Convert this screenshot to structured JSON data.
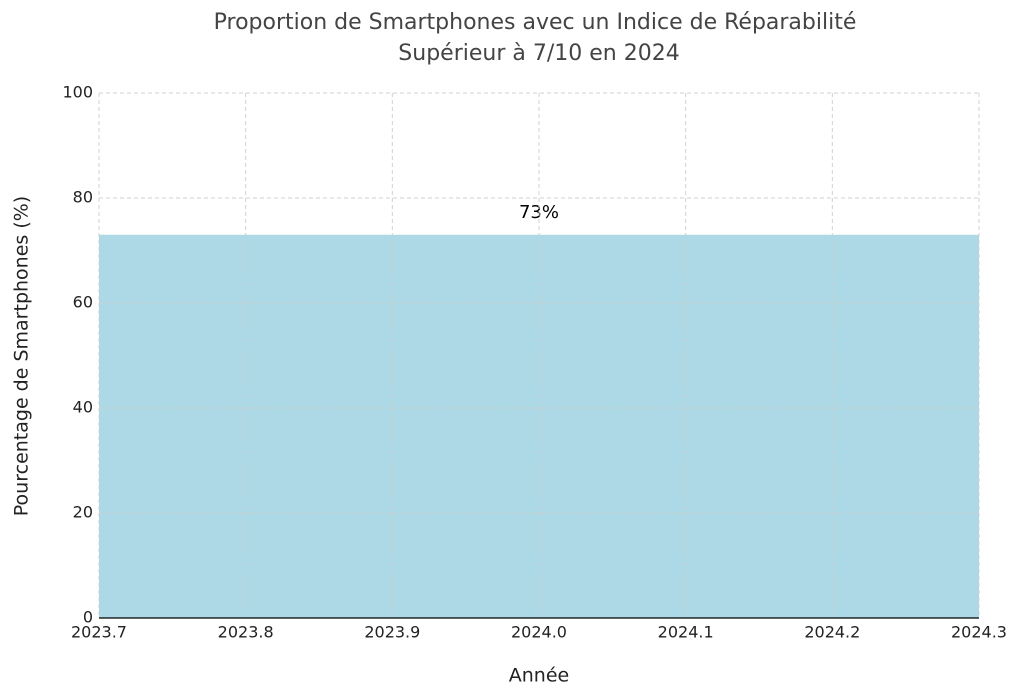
{
  "chart_data": {
    "type": "bar",
    "title": [
      "Proportion de Smartphones avec un Indice de Réparabilité",
      "Supérieur à 7/10 en 2024"
    ],
    "x_label": "Année",
    "y_label": "Pourcentage de Smartphones (%)",
    "x": [
      2024
    ],
    "values": [
      73
    ],
    "value_labels": [
      "73%"
    ],
    "bar_width": 0.6,
    "color": "#add8e6",
    "xlim": [
      2023.7,
      2024.3
    ],
    "xticks": [
      2023.7,
      2023.8,
      2023.9,
      {
        "value": 2024,
        "label": "2024.0"
      },
      2024.1,
      2024.2,
      2024.3
    ],
    "ylim": [
      0,
      100
    ],
    "yticks": [
      0,
      20,
      40,
      60,
      80,
      100
    ],
    "grid": true
  }
}
